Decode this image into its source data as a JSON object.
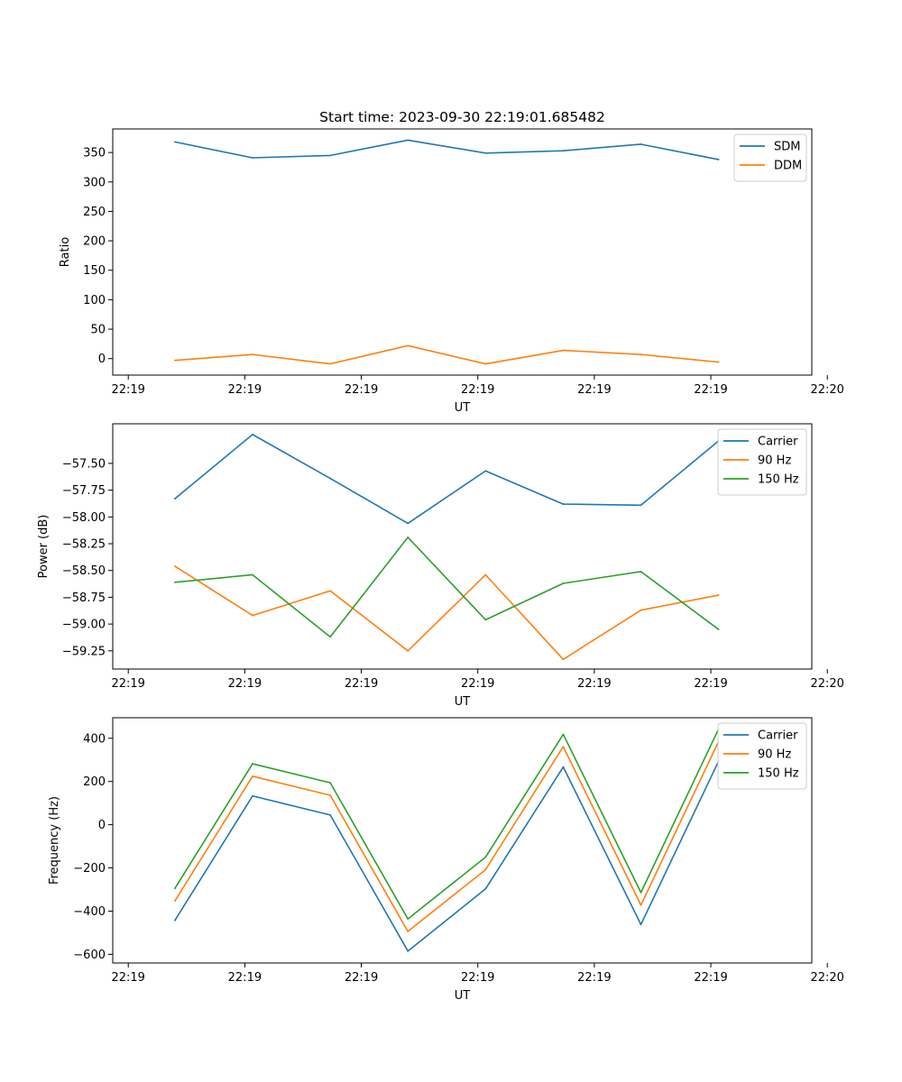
{
  "colors": {
    "blue": "#1f77b4",
    "orange": "#ff7f0e",
    "green": "#2ca02c",
    "axes": "#000000",
    "legend_border": "#cccccc"
  },
  "chart_data": [
    {
      "type": "line",
      "title": "Start time: 2023-09-30 22:19:01.685482",
      "xlabel": "UT",
      "ylabel": "Ratio",
      "xlim": [
        -0.8,
        8.2
      ],
      "ylim": [
        -28,
        390
      ],
      "xtick_values": [
        -0.6,
        0.9,
        2.4,
        3.9,
        5.4,
        6.9,
        8.4
      ],
      "xtick_labels": [
        "22:19",
        "22:19",
        "22:19",
        "22:19",
        "22:19",
        "22:19",
        "22:20"
      ],
      "ytick_values": [
        0,
        50,
        100,
        150,
        200,
        250,
        300,
        350
      ],
      "ytick_labels": [
        "0",
        "50",
        "100",
        "150",
        "200",
        "250",
        "300",
        "350"
      ],
      "x": [
        0,
        1,
        2,
        3,
        4,
        5,
        6,
        7
      ],
      "legend_loc": "top-right",
      "series": [
        {
          "name": "SDM",
          "color": "#1f77b4",
          "values": [
            368,
            341,
            345,
            371,
            349,
            353,
            364,
            338
          ]
        },
        {
          "name": "DDM",
          "color": "#ff7f0e",
          "values": [
            -3,
            7,
            -9,
            22,
            -9,
            14,
            7,
            -6
          ]
        }
      ]
    },
    {
      "type": "line",
      "title": "",
      "xlabel": "UT",
      "ylabel": "Power (dB)",
      "xlim": [
        -0.8,
        8.2
      ],
      "ylim": [
        -59.42,
        -57.13
      ],
      "xtick_values": [
        -0.6,
        0.9,
        2.4,
        3.9,
        5.4,
        6.9,
        8.4
      ],
      "xtick_labels": [
        "22:19",
        "22:19",
        "22:19",
        "22:19",
        "22:19",
        "22:19",
        "22:20"
      ],
      "ytick_values": [
        -59.25,
        -59.0,
        -58.75,
        -58.5,
        -58.25,
        -58.0,
        -57.75,
        -57.5
      ],
      "ytick_labels": [
        "−59.25",
        "−59.00",
        "−58.75",
        "−58.50",
        "−58.25",
        "−58.00",
        "−57.75",
        "−57.50"
      ],
      "x": [
        0,
        1,
        2,
        3,
        4,
        5,
        6,
        7
      ],
      "legend_loc": "top-right",
      "series": [
        {
          "name": "Carrier",
          "color": "#1f77b4",
          "values": [
            -57.83,
            -57.23,
            -57.64,
            -58.06,
            -57.57,
            -57.88,
            -57.89,
            -57.29
          ]
        },
        {
          "name": "90 Hz",
          "color": "#ff7f0e",
          "values": [
            -58.46,
            -58.92,
            -58.69,
            -59.25,
            -58.54,
            -59.33,
            -58.87,
            -58.73
          ]
        },
        {
          "name": "150 Hz",
          "color": "#2ca02c",
          "values": [
            -58.61,
            -58.54,
            -59.12,
            -58.19,
            -58.96,
            -58.62,
            -58.51,
            -59.05
          ]
        }
      ]
    },
    {
      "type": "line",
      "title": "",
      "xlabel": "UT",
      "ylabel": "Frequency (Hz)",
      "xlim": [
        -0.8,
        8.2
      ],
      "ylim": [
        -640,
        495
      ],
      "xtick_values": [
        -0.6,
        0.9,
        2.4,
        3.9,
        5.4,
        6.9,
        8.4
      ],
      "xtick_labels": [
        "22:19",
        "22:19",
        "22:19",
        "22:19",
        "22:19",
        "22:19",
        "22:20"
      ],
      "ytick_values": [
        -600,
        -400,
        -200,
        0,
        200,
        400
      ],
      "ytick_labels": [
        "−600",
        "−400",
        "−200",
        "0",
        "200",
        "400"
      ],
      "x": [
        0,
        1,
        2,
        3,
        4,
        5,
        6,
        7
      ],
      "legend_loc": "top-right",
      "series": [
        {
          "name": "Carrier",
          "color": "#1f77b4",
          "values": [
            -443,
            133,
            45,
            -585,
            -297,
            267,
            -462,
            294
          ]
        },
        {
          "name": "90 Hz",
          "color": "#ff7f0e",
          "values": [
            -353,
            224,
            136,
            -494,
            -208,
            361,
            -372,
            385
          ]
        },
        {
          "name": "150 Hz",
          "color": "#2ca02c",
          "values": [
            -295,
            282,
            194,
            -436,
            -150,
            418,
            -314,
            443
          ]
        }
      ]
    }
  ]
}
